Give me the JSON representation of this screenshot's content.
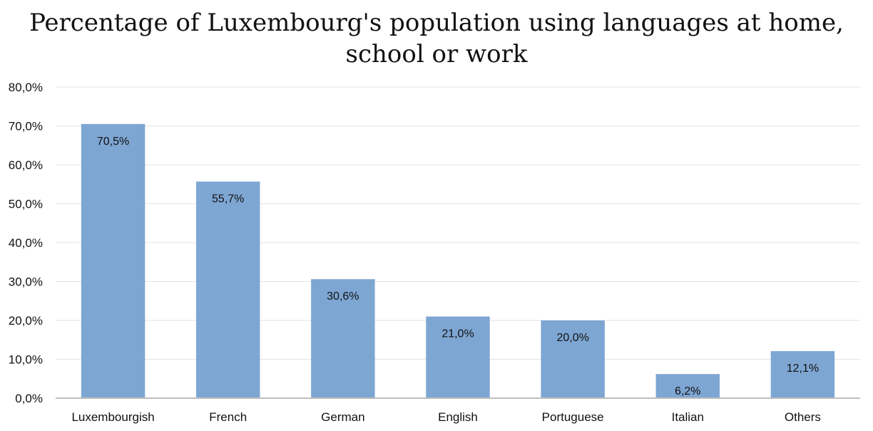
{
  "chart_data": {
    "type": "bar",
    "title": "Percentage of Luxembourg's population using languages at home, school or work",
    "categories": [
      "Luxembourgish",
      "French",
      "German",
      "English",
      "Portuguese",
      "Italian",
      "Others"
    ],
    "values": [
      70.5,
      55.7,
      30.6,
      21.0,
      20.0,
      6.2,
      12.1
    ],
    "value_labels": [
      "70,5%",
      "55,7%",
      "30,6%",
      "21,0%",
      "20,0%",
      "6,2%",
      "12,1%"
    ],
    "ylim": [
      0,
      80
    ],
    "yticks": [
      0,
      10,
      20,
      30,
      40,
      50,
      60,
      70,
      80
    ],
    "ytick_labels": [
      "0,0%",
      "10,0%",
      "20,0%",
      "30,0%",
      "40,0%",
      "50,0%",
      "60,0%",
      "70,0%",
      "80,0%"
    ],
    "xlabel": "",
    "ylabel": "",
    "grid": true,
    "legend": "none",
    "bar_color": "#7ea6d3",
    "grid_color": "#e3e3e3",
    "axis_color": "#bfbfbf"
  }
}
